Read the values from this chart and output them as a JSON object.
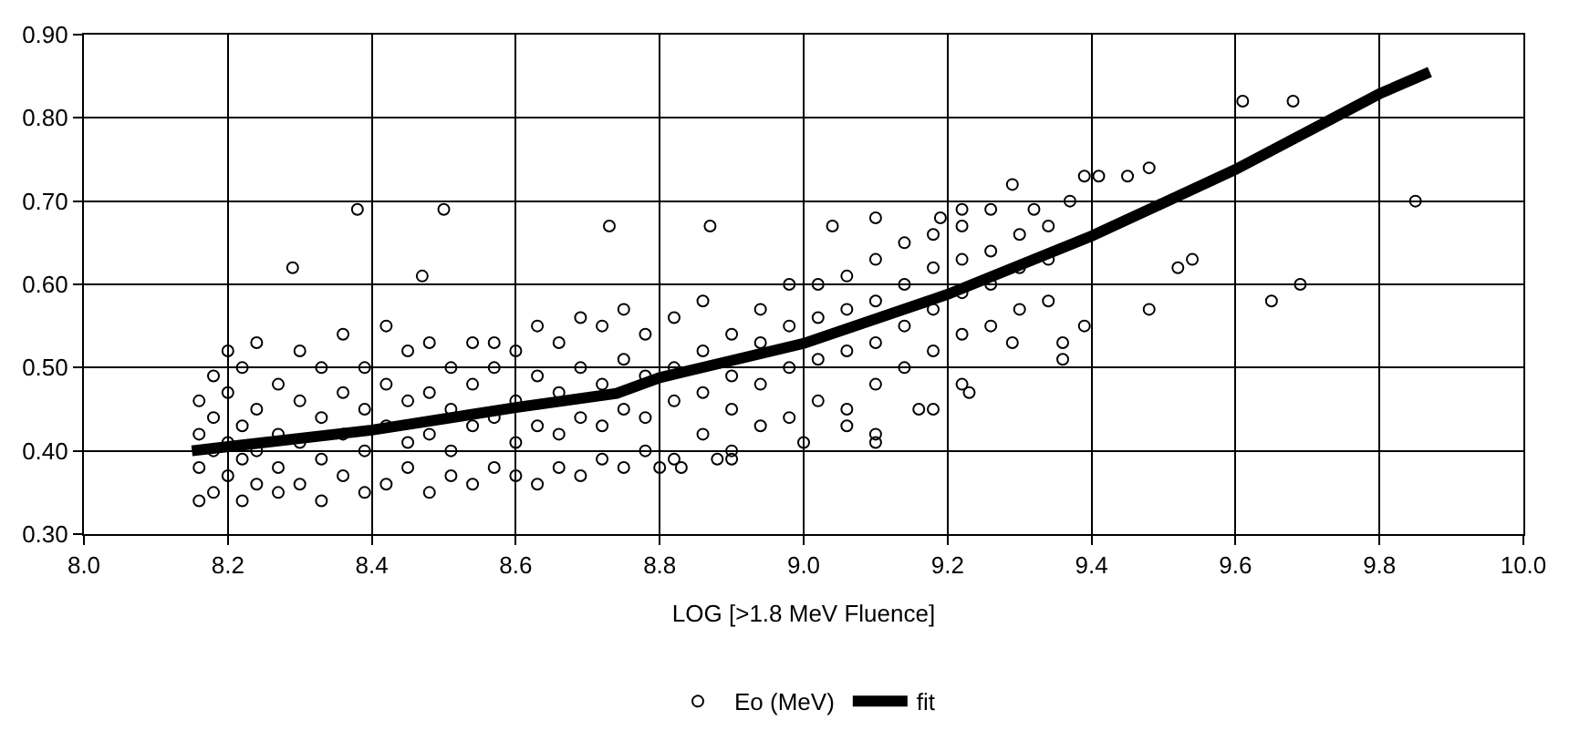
{
  "chart_data": {
    "type": "scatter",
    "xlabel": "LOG [>1.8 MeV Fluence]",
    "xlim": [
      8.0,
      10.0
    ],
    "xticks": [
      {
        "value": 8.0,
        "label": "8.0"
      },
      8.2,
      8.4,
      8.6,
      8.8,
      {
        "value": 9.0,
        "label": "9.0"
      },
      9.2,
      9.4,
      9.6,
      9.8,
      {
        "value": 10.0,
        "label": "10.0"
      }
    ],
    "ylim": [
      0.3,
      0.9
    ],
    "yticks": [
      {
        "value": 0.3,
        "label": "0.30"
      },
      {
        "value": 0.4,
        "label": "0.40"
      },
      {
        "value": 0.5,
        "label": "0.50"
      },
      {
        "value": 0.6,
        "label": "0.60"
      },
      {
        "value": 0.7,
        "label": "0.70"
      },
      {
        "value": 0.8,
        "label": "0.80"
      },
      {
        "value": 0.9,
        "label": "0.90"
      }
    ],
    "grid": true,
    "legend": "bottom",
    "series": [
      {
        "name": "Eo (MeV)",
        "marker": "circle",
        "color": "#000000",
        "x": [
          8.16,
          8.16,
          8.16,
          8.16,
          8.18,
          8.18,
          8.18,
          8.18,
          8.2,
          8.2,
          8.2,
          8.2,
          8.22,
          8.22,
          8.22,
          8.22,
          8.24,
          8.24,
          8.24,
          8.24,
          8.27,
          8.27,
          8.27,
          8.27,
          8.3,
          8.3,
          8.3,
          8.3,
          8.33,
          8.33,
          8.33,
          8.33,
          8.36,
          8.36,
          8.36,
          8.36,
          8.39,
          8.39,
          8.39,
          8.39,
          8.42,
          8.42,
          8.42,
          8.42,
          8.45,
          8.45,
          8.45,
          8.45,
          8.48,
          8.48,
          8.48,
          8.48,
          8.51,
          8.51,
          8.51,
          8.51,
          8.54,
          8.54,
          8.54,
          8.54,
          8.57,
          8.57,
          8.57,
          8.57,
          8.6,
          8.6,
          8.6,
          8.6,
          8.63,
          8.63,
          8.63,
          8.63,
          8.66,
          8.66,
          8.66,
          8.66,
          8.69,
          8.69,
          8.69,
          8.69,
          8.72,
          8.72,
          8.72,
          8.72,
          8.75,
          8.75,
          8.75,
          8.75,
          8.78,
          8.78,
          8.78,
          8.78,
          8.82,
          8.82,
          8.82,
          8.82,
          8.86,
          8.86,
          8.86,
          8.86,
          8.9,
          8.9,
          8.9,
          8.9,
          8.94,
          8.94,
          8.94,
          8.94,
          8.98,
          8.98,
          8.98,
          8.98,
          9.02,
          9.02,
          9.02,
          9.02,
          9.06,
          9.06,
          9.06,
          9.06,
          9.1,
          9.1,
          9.1,
          9.1,
          9.14,
          9.14,
          9.14,
          9.14,
          9.18,
          9.18,
          9.18,
          9.18,
          9.22,
          9.22,
          9.22,
          9.22,
          9.26,
          9.26,
          9.26,
          9.26,
          9.3,
          9.3,
          9.3,
          9.34,
          9.34,
          9.34,
          8.38,
          8.5,
          8.29,
          8.47,
          8.73,
          9.61,
          9.68,
          9.85,
          9.48,
          9.45,
          9.52,
          9.54,
          9.48,
          9.65,
          9.69,
          9.29,
          9.39,
          9.41,
          9.37,
          9.32,
          9.39,
          9.36,
          9.36,
          9.29,
          9.23,
          9.22,
          9.18,
          9.16,
          9.1,
          9.1,
          9.0,
          9.06,
          9.1,
          9.04,
          8.87,
          8.83,
          8.8,
          8.88,
          8.9,
          9.19,
          9.22
        ],
        "values": [
          0.34,
          0.38,
          0.42,
          0.46,
          0.35,
          0.4,
          0.44,
          0.49,
          0.37,
          0.41,
          0.47,
          0.52,
          0.34,
          0.39,
          0.43,
          0.5,
          0.36,
          0.4,
          0.45,
          0.53,
          0.35,
          0.38,
          0.42,
          0.48,
          0.36,
          0.41,
          0.46,
          0.52,
          0.34,
          0.39,
          0.44,
          0.5,
          0.37,
          0.42,
          0.47,
          0.54,
          0.35,
          0.4,
          0.45,
          0.5,
          0.36,
          0.43,
          0.48,
          0.55,
          0.38,
          0.41,
          0.46,
          0.52,
          0.35,
          0.42,
          0.47,
          0.53,
          0.37,
          0.4,
          0.45,
          0.5,
          0.36,
          0.43,
          0.48,
          0.53,
          0.38,
          0.44,
          0.5,
          0.53,
          0.37,
          0.41,
          0.46,
          0.52,
          0.36,
          0.43,
          0.49,
          0.55,
          0.38,
          0.42,
          0.47,
          0.53,
          0.37,
          0.44,
          0.5,
          0.56,
          0.39,
          0.43,
          0.48,
          0.55,
          0.38,
          0.45,
          0.51,
          0.57,
          0.4,
          0.44,
          0.49,
          0.54,
          0.39,
          0.46,
          0.5,
          0.56,
          0.42,
          0.47,
          0.52,
          0.58,
          0.4,
          0.45,
          0.49,
          0.54,
          0.43,
          0.48,
          0.53,
          0.57,
          0.44,
          0.5,
          0.55,
          0.6,
          0.46,
          0.51,
          0.56,
          0.6,
          0.45,
          0.52,
          0.57,
          0.61,
          0.48,
          0.53,
          0.58,
          0.63,
          0.5,
          0.55,
          0.6,
          0.65,
          0.52,
          0.57,
          0.62,
          0.66,
          0.54,
          0.59,
          0.63,
          0.67,
          0.55,
          0.6,
          0.64,
          0.69,
          0.57,
          0.62,
          0.66,
          0.58,
          0.63,
          0.67,
          0.69,
          0.69,
          0.62,
          0.61,
          0.67,
          0.82,
          0.82,
          0.7,
          0.74,
          0.73,
          0.62,
          0.63,
          0.57,
          0.58,
          0.6,
          0.72,
          0.73,
          0.73,
          0.7,
          0.69,
          0.55,
          0.51,
          0.53,
          0.53,
          0.47,
          0.48,
          0.45,
          0.45,
          0.41,
          0.42,
          0.41,
          0.43,
          0.68,
          0.67,
          0.67,
          0.38,
          0.38,
          0.39,
          0.39,
          0.68,
          0.69
        ]
      },
      {
        "name": "fit",
        "type": "line",
        "marker": "none",
        "color": "#000000",
        "x": [
          8.15,
          8.4,
          8.6,
          8.74,
          8.8,
          9.0,
          9.2,
          9.4,
          9.6,
          9.8,
          9.87
        ],
        "values": [
          0.4,
          0.425,
          0.452,
          0.469,
          0.488,
          0.529,
          0.588,
          0.658,
          0.738,
          0.829,
          0.855
        ]
      }
    ]
  }
}
